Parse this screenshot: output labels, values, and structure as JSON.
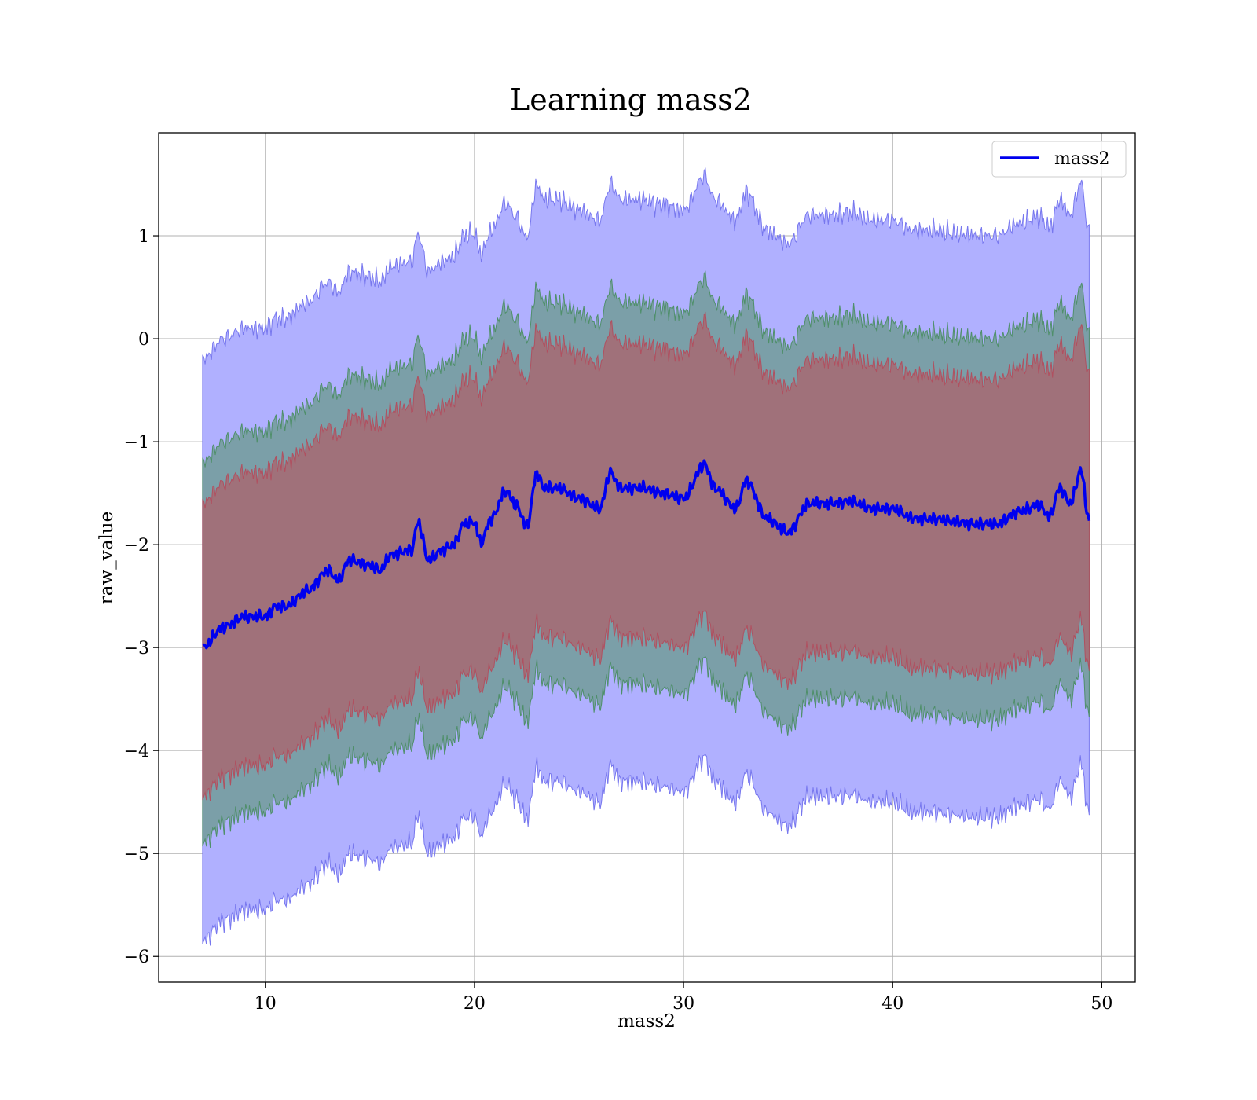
{
  "chart_data": {
    "type": "area",
    "title": "Learning mass2",
    "xlabel": "mass2",
    "ylabel": "raw_value",
    "xlim": [
      4.9,
      51.6
    ],
    "ylim": [
      -6.25,
      2.0
    ],
    "xticks": [
      10,
      20,
      30,
      40,
      50
    ],
    "yticks": [
      -6,
      -5,
      -4,
      -3,
      -2,
      -1,
      0,
      1
    ],
    "xtick_labels": [
      "10",
      "20",
      "30",
      "40",
      "50"
    ],
    "ytick_labels": [
      "−6",
      "−5",
      "−4",
      "−3",
      "−2",
      "−1",
      "0",
      "1"
    ],
    "grid": true,
    "legend": {
      "location": "top-right",
      "entries": [
        "mass2"
      ]
    },
    "x": [
      7.0,
      8.0,
      9.0,
      10.0,
      10.5,
      11.0,
      12.0,
      13.0,
      13.5,
      14.0,
      15.0,
      15.5,
      16.0,
      17.0,
      17.3,
      17.8,
      18.5,
      19.0,
      19.5,
      20.0,
      20.3,
      20.8,
      21.5,
      22.0,
      22.5,
      23.0,
      23.3,
      24.0,
      25.0,
      26.0,
      26.5,
      27.0,
      28.0,
      29.0,
      30.0,
      31.0,
      31.5,
      32.5,
      33.0,
      34.0,
      35.0,
      36.0,
      37.0,
      38.0,
      39.0,
      40.0,
      41.0,
      42.0,
      43.0,
      44.0,
      45.0,
      46.0,
      47.0,
      47.5,
      48.0,
      48.5,
      49.0,
      49.4
    ],
    "mean": [
      -3.0,
      -2.8,
      -2.7,
      -2.7,
      -2.6,
      -2.6,
      -2.45,
      -2.25,
      -2.35,
      -2.15,
      -2.2,
      -2.25,
      -2.1,
      -2.05,
      -1.78,
      -2.15,
      -2.05,
      -2.0,
      -1.8,
      -1.78,
      -1.98,
      -1.75,
      -1.48,
      -1.62,
      -1.82,
      -1.3,
      -1.45,
      -1.45,
      -1.55,
      -1.65,
      -1.3,
      -1.45,
      -1.45,
      -1.5,
      -1.55,
      -1.22,
      -1.45,
      -1.65,
      -1.38,
      -1.75,
      -1.88,
      -1.6,
      -1.6,
      -1.58,
      -1.65,
      -1.65,
      -1.75,
      -1.75,
      -1.78,
      -1.8,
      -1.8,
      -1.68,
      -1.62,
      -1.72,
      -1.45,
      -1.6,
      -1.28,
      -1.78
    ],
    "band_2sigma": {
      "color": "#8080ff",
      "lower_offset": -2.85,
      "upper_offset": 2.8
    },
    "band_1sigma": {
      "color": "#4f8f7a",
      "lower_offset": -1.9,
      "upper_offset": 1.8
    },
    "band_half_sigma": {
      "color": "#a85a66",
      "lower_offset": -1.45,
      "upper_offset": 1.4
    },
    "series": [
      {
        "name": "mass2",
        "color": "#0000ee"
      }
    ]
  }
}
